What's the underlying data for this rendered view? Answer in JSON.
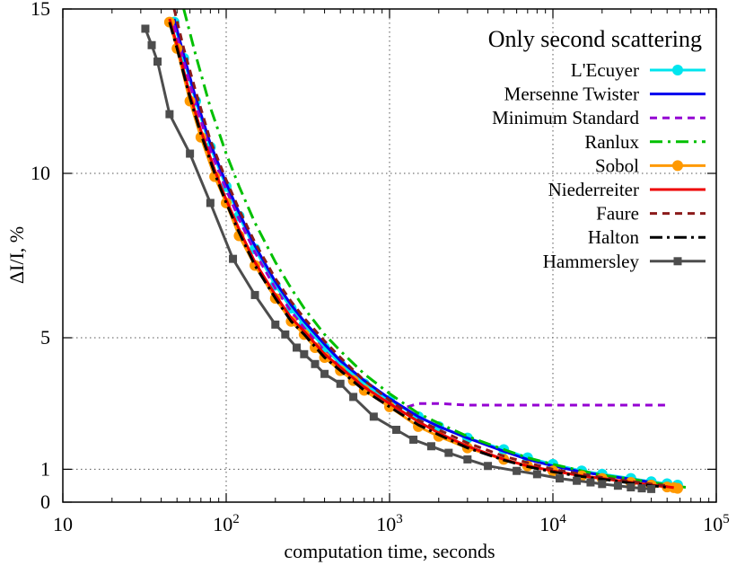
{
  "chart_data": {
    "type": "line",
    "title": "",
    "legend_title": "Only second scattering",
    "xlabel": "computation time, seconds",
    "ylabel": "ΔI/I, %",
    "x_scale": "log",
    "xlim": [
      10,
      100000
    ],
    "ylim": [
      0,
      15
    ],
    "x_ticks": [
      {
        "value": 10,
        "base": "10",
        "exp": ""
      },
      {
        "value": 100,
        "base": "10",
        "exp": "2"
      },
      {
        "value": 1000,
        "base": "10",
        "exp": "3"
      },
      {
        "value": 10000,
        "base": "10",
        "exp": "4"
      },
      {
        "value": 100000,
        "base": "10",
        "exp": "5"
      }
    ],
    "y_ticks": [
      {
        "value": 0,
        "label": "0"
      },
      {
        "value": 1,
        "label": "1"
      },
      {
        "value": 5,
        "label": "5"
      },
      {
        "value": 10,
        "label": "10"
      },
      {
        "value": 15,
        "label": "15"
      }
    ],
    "grid": true,
    "legend_position": "top-right",
    "series": [
      {
        "name": "L'Ecuyer",
        "color": "#00e5ee",
        "dash": "",
        "marker": "circle",
        "x": [
          48,
          55,
          65,
          80,
          100,
          120,
          150,
          200,
          250,
          300,
          400,
          500,
          700,
          1000,
          1500,
          2000,
          3000,
          5000,
          7000,
          10000,
          15000,
          20000,
          30000,
          40000,
          50000,
          58000
        ],
        "y": [
          14.6,
          13.5,
          12.2,
          10.8,
          9.6,
          8.7,
          7.7,
          6.6,
          5.9,
          5.4,
          4.7,
          4.2,
          3.6,
          3.1,
          2.6,
          2.3,
          1.95,
          1.6,
          1.35,
          1.15,
          0.95,
          0.85,
          0.72,
          0.62,
          0.56,
          0.52
        ]
      },
      {
        "name": "Mersenne Twister",
        "color": "#0000ee",
        "dash": "",
        "marker": "",
        "x": [
          48,
          55,
          65,
          80,
          100,
          120,
          150,
          200,
          250,
          300,
          400,
          500,
          700,
          1000,
          1500,
          2000,
          3000,
          5000,
          7000,
          10000,
          15000,
          20000,
          30000,
          40000,
          50000
        ],
        "y": [
          14.7,
          13.6,
          12.3,
          10.9,
          9.7,
          8.8,
          7.8,
          6.7,
          6.0,
          5.5,
          4.8,
          4.3,
          3.7,
          3.15,
          2.6,
          2.3,
          1.95,
          1.55,
          1.3,
          1.1,
          0.92,
          0.82,
          0.7,
          0.6,
          0.52
        ]
      },
      {
        "name": "Minimum Standard",
        "color": "#9400d3",
        "dash": "8 6",
        "marker": "",
        "x": [
          48,
          55,
          65,
          80,
          100,
          120,
          150,
          200,
          250,
          300,
          400,
          500,
          700,
          1000,
          1200,
          1500,
          2000,
          3000,
          5000,
          10000,
          20000,
          30000,
          50000
        ],
        "y": [
          14.5,
          13.4,
          12.1,
          10.7,
          9.5,
          8.6,
          7.6,
          6.5,
          5.8,
          5.3,
          4.6,
          4.1,
          3.5,
          3.0,
          2.85,
          3.0,
          3.0,
          2.95,
          2.95,
          2.95,
          2.95,
          2.95,
          2.95
        ]
      },
      {
        "name": "Ranlux",
        "color": "#00c000",
        "dash": "14 6 3 6",
        "marker": "",
        "x": [
          55,
          65,
          80,
          100,
          120,
          150,
          200,
          250,
          300,
          400,
          500,
          700,
          1000,
          1500,
          2000,
          3000,
          5000,
          7000,
          10000,
          15000,
          20000,
          30000,
          40000,
          50000,
          60000,
          65000
        ],
        "y": [
          15.0,
          13.6,
          12.0,
          10.6,
          9.6,
          8.5,
          7.3,
          6.5,
          5.9,
          5.1,
          4.6,
          3.9,
          3.3,
          2.7,
          2.4,
          2.0,
          1.6,
          1.35,
          1.15,
          0.95,
          0.82,
          0.7,
          0.6,
          0.53,
          0.47,
          0.45
        ]
      },
      {
        "name": "Sobol",
        "color": "#ff9900",
        "dash": "",
        "marker": "circle",
        "x": [
          45,
          50,
          60,
          70,
          85,
          100,
          120,
          150,
          200,
          250,
          300,
          350,
          400,
          500,
          600,
          700,
          1000,
          1500,
          2000,
          3000,
          5000,
          7000,
          10000,
          15000,
          20000,
          30000,
          40000,
          50000,
          55000,
          58000
        ],
        "y": [
          14.6,
          13.8,
          12.2,
          11.1,
          9.9,
          9.1,
          8.1,
          7.2,
          6.2,
          5.5,
          5.1,
          4.7,
          4.4,
          4.0,
          3.7,
          3.4,
          2.9,
          2.3,
          2.0,
          1.65,
          1.3,
          1.1,
          0.95,
          0.8,
          0.72,
          0.6,
          0.52,
          0.46,
          0.44,
          0.42
        ]
      },
      {
        "name": "Niederreiter",
        "color": "#ee0000",
        "dash": "",
        "marker": "",
        "x": [
          45,
          50,
          60,
          70,
          85,
          100,
          120,
          150,
          200,
          250,
          300,
          400,
          500,
          700,
          1000,
          1500,
          2000,
          3000,
          5000,
          7000,
          10000,
          15000,
          20000,
          30000,
          40000,
          50000,
          55000
        ],
        "y": [
          14.7,
          13.9,
          12.4,
          11.3,
          10.1,
          9.2,
          8.3,
          7.3,
          6.3,
          5.6,
          5.2,
          4.5,
          4.1,
          3.5,
          3.0,
          2.45,
          2.1,
          1.7,
          1.3,
          1.1,
          0.95,
          0.8,
          0.72,
          0.6,
          0.52,
          0.47,
          0.44
        ]
      },
      {
        "name": "Faure",
        "color": "#8b1a1a",
        "dash": "8 6",
        "marker": "",
        "x": [
          48,
          55,
          65,
          80,
          100,
          120,
          150,
          200,
          250,
          300,
          400,
          500,
          700,
          1000,
          1500,
          2000,
          3000,
          5000,
          7000,
          10000,
          15000,
          20000,
          30000,
          40000,
          50000
        ],
        "y": [
          15.0,
          13.8,
          12.5,
          11.0,
          9.8,
          8.9,
          7.9,
          6.8,
          6.1,
          5.6,
          4.9,
          4.4,
          3.7,
          3.1,
          2.5,
          2.2,
          1.8,
          1.4,
          1.2,
          1.0,
          0.85,
          0.75,
          0.63,
          0.55,
          0.5
        ]
      },
      {
        "name": "Halton",
        "color": "#000000",
        "dash": "14 5 3 5",
        "marker": "",
        "x": [
          45,
          50,
          60,
          70,
          85,
          100,
          120,
          150,
          200,
          250,
          300,
          400,
          500,
          700,
          1000,
          1500,
          2000,
          3000,
          5000,
          7000,
          10000,
          15000,
          20000,
          30000,
          40000,
          50000
        ],
        "y": [
          14.6,
          13.8,
          12.3,
          11.2,
          10.0,
          9.1,
          8.2,
          7.2,
          6.2,
          5.5,
          5.1,
          4.4,
          4.0,
          3.4,
          2.9,
          2.35,
          2.05,
          1.65,
          1.28,
          1.08,
          0.92,
          0.78,
          0.7,
          0.58,
          0.5,
          0.45
        ]
      },
      {
        "name": "Hammersley",
        "color": "#4d4d4d",
        "dash": "",
        "marker": "square",
        "x": [
          32,
          35,
          38,
          45,
          60,
          80,
          110,
          150,
          200,
          230,
          270,
          300,
          350,
          400,
          500,
          600,
          800,
          1100,
          1400,
          1800,
          2300,
          3000,
          4000,
          6000,
          8000,
          11000,
          14000,
          17000,
          20000,
          25000,
          30000,
          35000,
          40000
        ],
        "y": [
          14.4,
          13.9,
          13.4,
          11.8,
          10.6,
          9.1,
          7.4,
          6.3,
          5.4,
          5.1,
          4.7,
          4.5,
          4.2,
          3.9,
          3.6,
          3.2,
          2.6,
          2.2,
          1.9,
          1.7,
          1.5,
          1.3,
          1.1,
          0.95,
          0.85,
          0.72,
          0.65,
          0.6,
          0.55,
          0.5,
          0.45,
          0.42,
          0.4
        ]
      }
    ]
  }
}
